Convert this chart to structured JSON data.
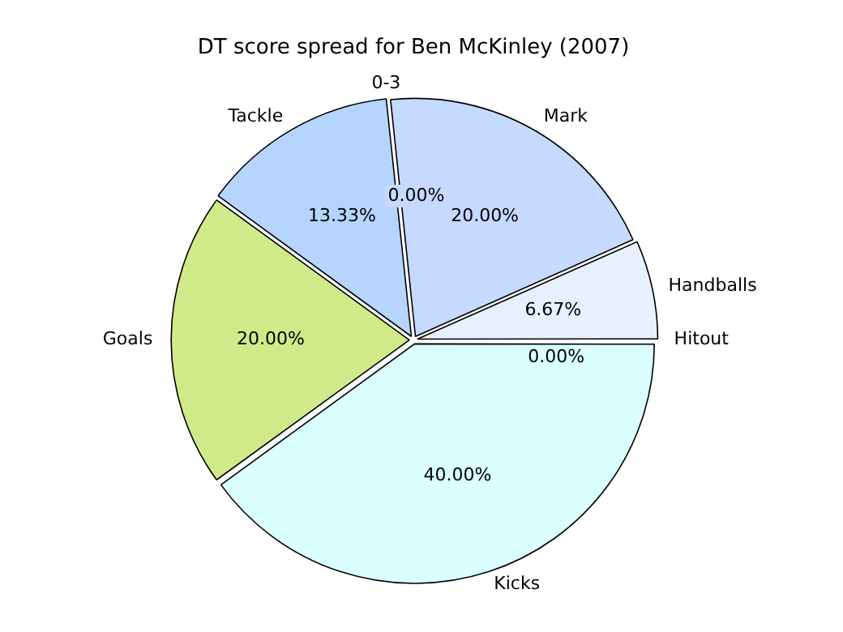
{
  "chart_data": {
    "type": "pie",
    "title": "DT score spread for Ben McKinley (2007)",
    "categories": [
      "Mark",
      "Handballs",
      "Hitout",
      "Kicks",
      "Goals",
      "Tackle",
      "0-3"
    ],
    "values": [
      20,
      6.67,
      0,
      40,
      20,
      13.33,
      0
    ],
    "colors": [
      "#c6d9ff",
      "#e8f0ff",
      "#f2f7ff",
      "#d9ffff",
      "#d0ea8a",
      "#b5d5ff",
      "#dde8ff"
    ],
    "value_labels": [
      "20.00%",
      "6.67%",
      "0.00%",
      "40.00%",
      "20.00%",
      "13.33%",
      "0.00%"
    ],
    "legend": false
  }
}
